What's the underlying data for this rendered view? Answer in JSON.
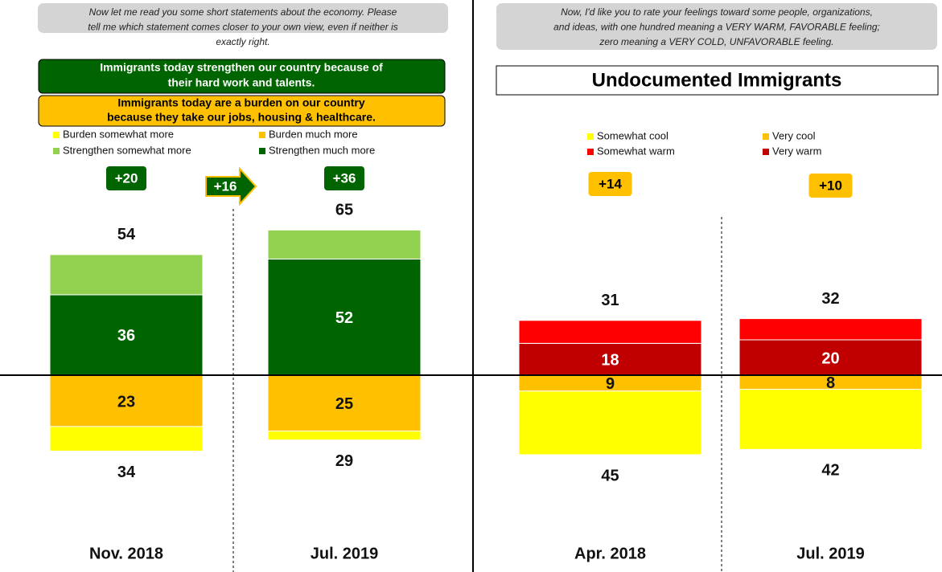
{
  "chart_data": [
    {
      "type": "diverging-bar",
      "question": [
        "Now let me read you some short statements about the economy. Please",
        "tell me which statement comes closer to your own view, even if neither is",
        "exactly right."
      ],
      "statement_positive": [
        "Immigrants today strengthen our country because of",
        "their hard work and talents."
      ],
      "statement_negative": [
        "Immigrants today are a burden on our country",
        "because they take our jobs, housing & healthcare."
      ],
      "categories": [
        "Nov. 2018",
        "Jul. 2019"
      ],
      "series": [
        {
          "name": "Burden somewhat more",
          "color": "#ffff00",
          "side": "below",
          "show_values": false,
          "values": [
            11,
            4
          ]
        },
        {
          "name": "Burden much more",
          "color": "#ffc000",
          "side": "below",
          "show_values": true,
          "values": [
            23,
            25
          ]
        },
        {
          "name": "Strengthen somewhat more",
          "color": "#92d050",
          "side": "above",
          "show_values": false,
          "values": [
            18,
            13
          ]
        },
        {
          "name": "Strengthen much more",
          "color": "#006400",
          "side": "above",
          "show_values": true,
          "values": [
            36,
            52
          ]
        }
      ],
      "totals_above": [
        54,
        65
      ],
      "totals_below": [
        34,
        29
      ],
      "net_labels": [
        "+20",
        "+36"
      ],
      "net_color": "#006400",
      "change_label": "+16"
    },
    {
      "type": "diverging-bar",
      "question": [
        "Now, I'd like you to rate your feelings toward some people, organizations,",
        "and ideas, with one hundred meaning a VERY WARM, FAVORABLE feeling;",
        "zero meaning a VERY COLD, UNFAVORABLE feeling."
      ],
      "title": "Undocumented Immigrants",
      "categories": [
        "Apr. 2018",
        "Jul. 2019"
      ],
      "series": [
        {
          "name": "Somewhat cool",
          "color": "#ffff00",
          "side": "below",
          "show_values": false,
          "values": [
            36,
            34
          ]
        },
        {
          "name": "Very cool",
          "color": "#ffc000",
          "side": "below",
          "show_values": true,
          "values": [
            9,
            8
          ]
        },
        {
          "name": "Somewhat warm",
          "color": "#ff0000",
          "side": "above",
          "show_values": false,
          "values": [
            13,
            12
          ]
        },
        {
          "name": "Very warm",
          "color": "#c00000",
          "side": "above",
          "show_values": true,
          "values": [
            18,
            20
          ]
        }
      ],
      "totals_above": [
        31,
        32
      ],
      "totals_below": [
        45,
        42
      ],
      "net_labels": [
        "+14",
        "+10"
      ],
      "net_color": "#ffc000"
    }
  ]
}
